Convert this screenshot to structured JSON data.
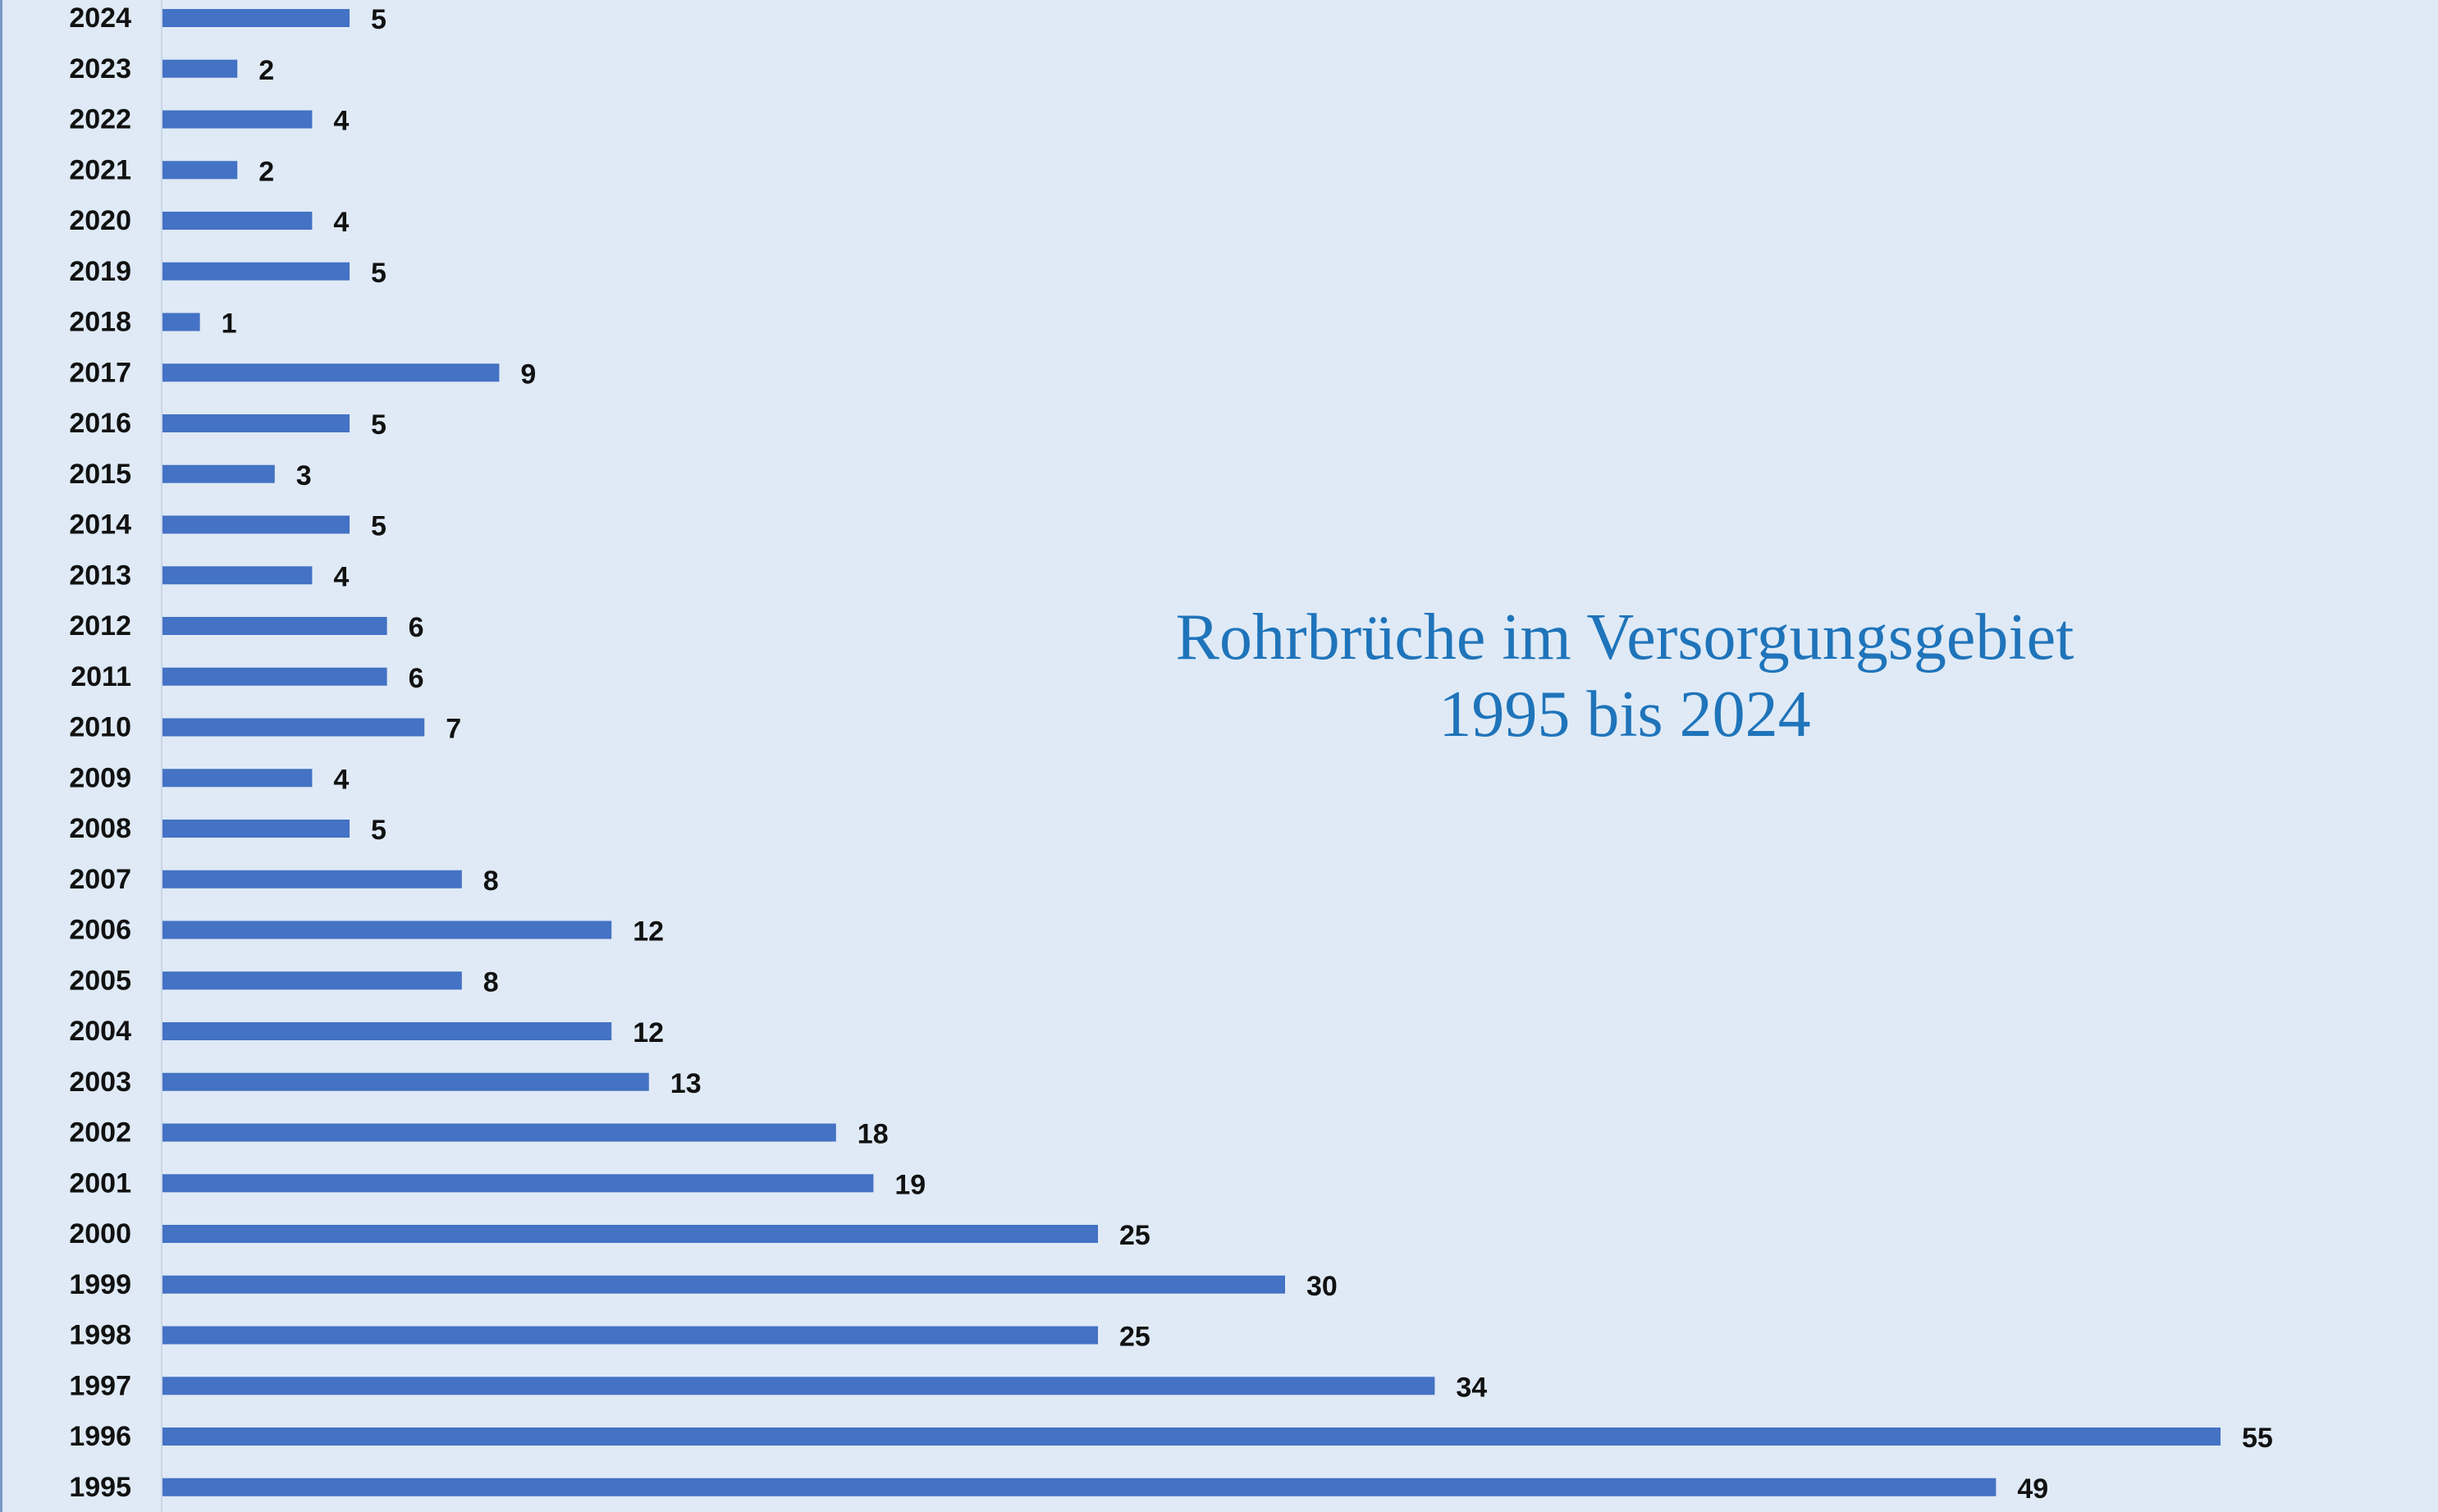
{
  "chart_data": {
    "type": "bar",
    "orientation": "horizontal",
    "title_lines": [
      "Rohrbrüche im Versorgungsgebiet",
      "1995 bis 2024"
    ],
    "xlabel": "",
    "ylabel": "",
    "categories": [
      "2024",
      "2023",
      "2022",
      "2021",
      "2020",
      "2019",
      "2018",
      "2017",
      "2016",
      "2015",
      "2014",
      "2013",
      "2012",
      "2011",
      "2010",
      "2009",
      "2008",
      "2007",
      "2006",
      "2005",
      "2004",
      "2003",
      "2002",
      "2001",
      "2000",
      "1999",
      "1998",
      "1997",
      "1996",
      "1995"
    ],
    "values": [
      5,
      2,
      4,
      2,
      4,
      5,
      1,
      9,
      5,
      3,
      5,
      4,
      6,
      6,
      7,
      4,
      5,
      8,
      12,
      8,
      12,
      13,
      18,
      19,
      25,
      30,
      25,
      34,
      55,
      49
    ],
    "xlim": [
      0,
      55
    ],
    "grid": false,
    "legend": "none",
    "data_labels": true,
    "colors": {
      "bar": "#4472c4",
      "background": "#dfeaf6",
      "title": "#1f74ba",
      "text": "#111111"
    }
  }
}
